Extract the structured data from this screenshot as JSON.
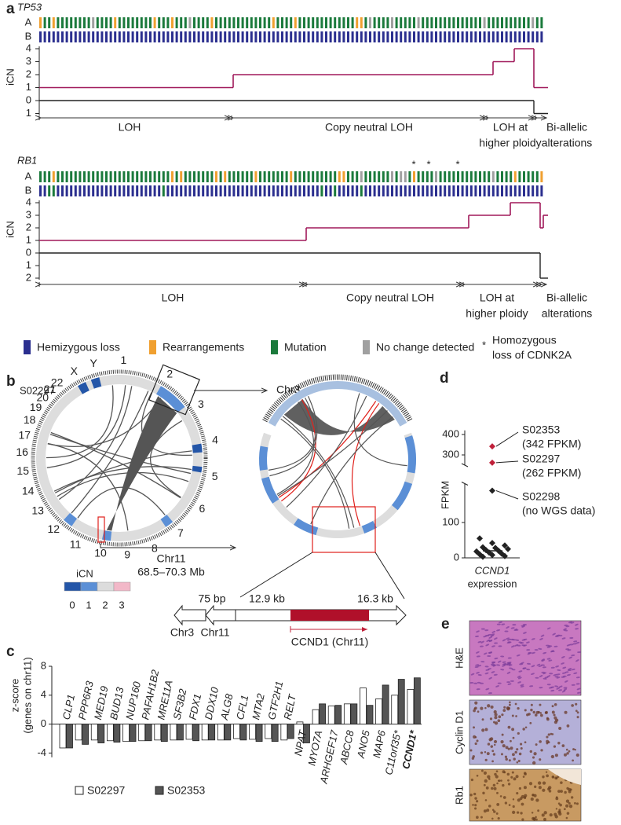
{
  "panel_labels": {
    "a": "a",
    "b": "b",
    "c": "c",
    "d": "d",
    "e": "e"
  },
  "panel_a": {
    "tracks": [
      {
        "gene": "TP53",
        "allele_a": "A",
        "allele_b": "B",
        "y_label": "iCN",
        "upper_ticks": [
          0,
          1,
          2,
          3,
          4
        ],
        "lower_ticks": [
          1
        ],
        "upper_steps": [
          1,
          2,
          3,
          4,
          1
        ],
        "lower_steps": [
          0,
          0,
          0,
          0,
          1
        ],
        "regions": [
          [
            "LOH"
          ],
          [
            "Copy neutral LOH"
          ],
          [
            "LOH at",
            "higher ploidy"
          ],
          [
            "Bi-allelic",
            "alterations"
          ]
        ]
      },
      {
        "gene": "RB1",
        "allele_a": "A",
        "allele_b": "B",
        "y_label": "iCN",
        "upper_ticks": [
          0,
          1,
          2,
          3,
          4
        ],
        "lower_ticks": [
          1,
          2
        ],
        "upper_steps": [
          1,
          2,
          3,
          4,
          2,
          3
        ],
        "lower_steps": [
          0,
          0,
          0,
          0,
          2,
          2
        ],
        "regions": [
          [
            "LOH"
          ],
          [
            "Copy neutral LOH"
          ],
          [
            "LOH at",
            "higher ploidy"
          ],
          [
            "Bi-allelic",
            "alterations"
          ]
        ]
      }
    ],
    "legend": [
      "Hemizygous loss",
      "Rearrangements",
      "Mutation",
      "No change detected"
    ],
    "legend_colors": [
      "#2b2f8f",
      "#f0a030",
      "#1b7a3c",
      "#a0a0a0"
    ],
    "star": "*",
    "homozygous": [
      "Homozygous",
      "loss of CDNK2A"
    ]
  },
  "panel_b": {
    "sample": "S02297",
    "chromosomes": [
      "1",
      "2",
      "3",
      "4",
      "5",
      "6",
      "7",
      "8",
      "9",
      "10",
      "11",
      "12",
      "13",
      "14",
      "15",
      "16",
      "17",
      "18",
      "19",
      "20",
      "21",
      "22",
      "X",
      "Y"
    ],
    "zoom_label": "Chr3",
    "chr11_label": "Chr11",
    "chr11_range": "68.5–70.3 Mb",
    "icn_label": "iCN",
    "icn_ticks": [
      0,
      1,
      2,
      3
    ],
    "icn_colors": [
      "#2456a8",
      "#5b8fd6",
      "#dcdcdc",
      "#f2b8c8"
    ],
    "junction": {
      "gap": "75 bp",
      "left_len": "12.9 kb",
      "right_len": "16.3 kb",
      "left_chr": "Chr3",
      "mid_chr": "Chr11",
      "gene": "CCND1 (Chr11)"
    }
  },
  "chart_data": [
    {
      "type": "bar",
      "y_label": [
        "z-score",
        "(genes on chr11)"
      ],
      "categories": [
        "CLP1",
        "PPP6R3",
        "MED19",
        "BUD13",
        "NUP160",
        "PAFAH1B2",
        "MRE11A",
        "SF3B2",
        "FDX1",
        "DDX10",
        "ALG8",
        "CFL1",
        "MTA2",
        "GTF2H1",
        "RELT",
        "NPAT",
        "MYO7A",
        "ARHGEF17",
        "ABCC8",
        "ANO5",
        "MAP6",
        "C11orf35*",
        "CCND1*"
      ],
      "category_colors": [
        "#000000",
        "#000000",
        "#000000",
        "#000000",
        "#000000",
        "#000000",
        "#000000",
        "#000000",
        "#000000",
        "#000000",
        "#000000",
        "#000000",
        "#000000",
        "#000000",
        "#000000",
        "#000000",
        "#000000",
        "#000000",
        "#000000",
        "#000000",
        "#000000",
        "#000000",
        "#e0201b"
      ],
      "series": [
        {
          "name": "S02297",
          "color": "#ffffff",
          "values": [
            -3.3,
            -2.2,
            -2.2,
            -2.3,
            -2.4,
            -2.3,
            -2.2,
            -2.2,
            -2.1,
            -2.2,
            -2.2,
            -2.0,
            -2.1,
            -2.0,
            -2.2,
            0.3,
            2.0,
            2.5,
            2.8,
            5.0,
            3.5,
            4.0,
            4.8
          ]
        },
        {
          "name": "S02353",
          "color": "#555555",
          "values": [
            -3.3,
            -2.8,
            -2.6,
            -2.5,
            -2.4,
            -2.3,
            -2.4,
            -2.2,
            -2.3,
            -2.2,
            -2.2,
            -2.2,
            -2.4,
            -2.4,
            -2.0,
            -2.6,
            2.8,
            2.6,
            2.8,
            2.6,
            5.4,
            6.2,
            6.4
          ]
        }
      ],
      "ylim": [
        -4.6,
        8
      ],
      "yticks": [
        -4,
        0,
        4,
        8
      ]
    },
    {
      "type": "scatter",
      "y_label": "FPKM",
      "x_label": [
        "CCND1",
        "expression"
      ],
      "values": [
        342,
        262,
        190,
        55,
        42,
        35,
        30,
        28,
        25,
        22,
        20,
        18,
        15,
        12,
        10,
        8,
        5,
        3
      ],
      "point_colors": [
        "#c0203a",
        "#c0203a",
        "#222222",
        "#222222",
        "#222222",
        "#222222",
        "#222222",
        "#222222",
        "#222222",
        "#222222",
        "#222222",
        "#222222",
        "#222222",
        "#222222",
        "#222222",
        "#222222",
        "#222222",
        "#222222"
      ],
      "ylim": [
        0,
        420
      ],
      "y_break": [
        210,
        250
      ],
      "yticks": [
        0,
        100,
        300,
        400
      ],
      "annotations": [
        [
          "S02353",
          "(342 FPKM)"
        ],
        [
          "S02297",
          "(262 FPKM)"
        ],
        [
          "S02298",
          "(no WGS data)"
        ]
      ]
    }
  ],
  "panel_e": {
    "stains": [
      "H&E",
      "Cyclin D1",
      "Rb1"
    ]
  }
}
